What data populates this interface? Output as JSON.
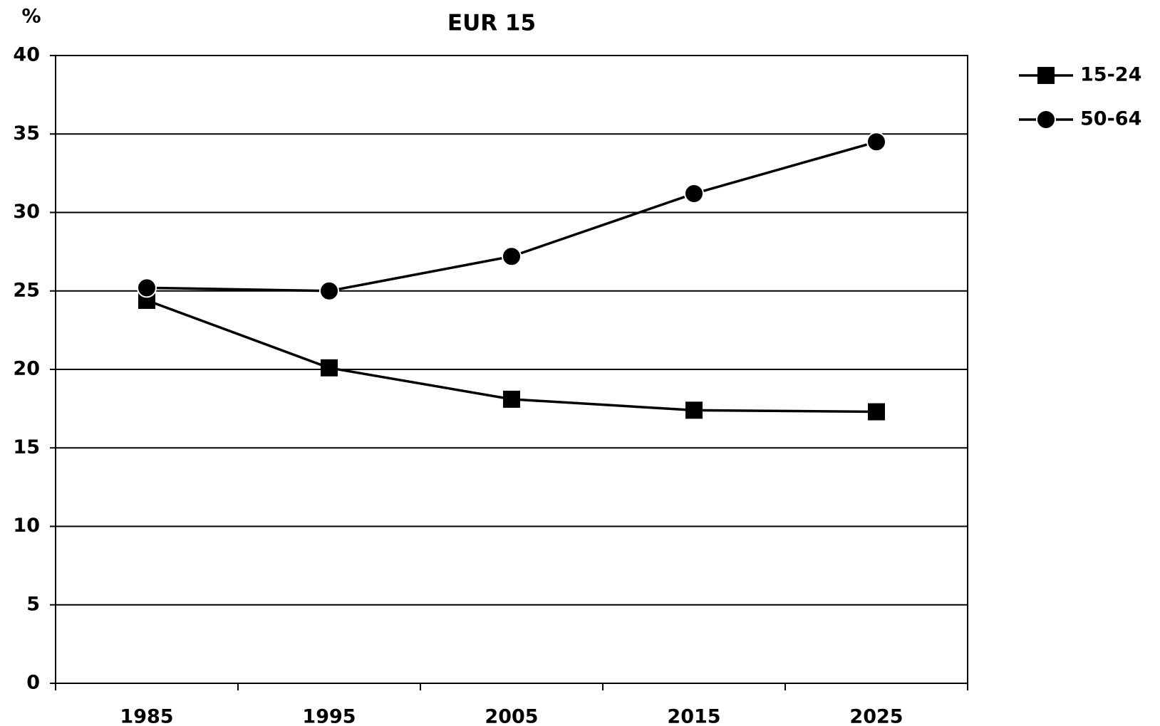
{
  "chart_data": {
    "type": "line",
    "title": "EUR 15",
    "y_label": "%",
    "categories": [
      "1985",
      "1995",
      "2005",
      "2015",
      "2025"
    ],
    "series": [
      {
        "name": "15-24",
        "color": "#000000",
        "marker": "square",
        "values": [
          24.4,
          20.1,
          18.1,
          17.4,
          17.3
        ]
      },
      {
        "name": "50-64",
        "color": "#000000",
        "marker": "circle",
        "values": [
          25.2,
          25.0,
          27.2,
          31.2,
          34.5
        ]
      }
    ],
    "ylim": [
      0,
      40
    ],
    "yticks": [
      0,
      5,
      10,
      15,
      20,
      25,
      30,
      35,
      40
    ],
    "grid": true,
    "legend": "top-right"
  }
}
